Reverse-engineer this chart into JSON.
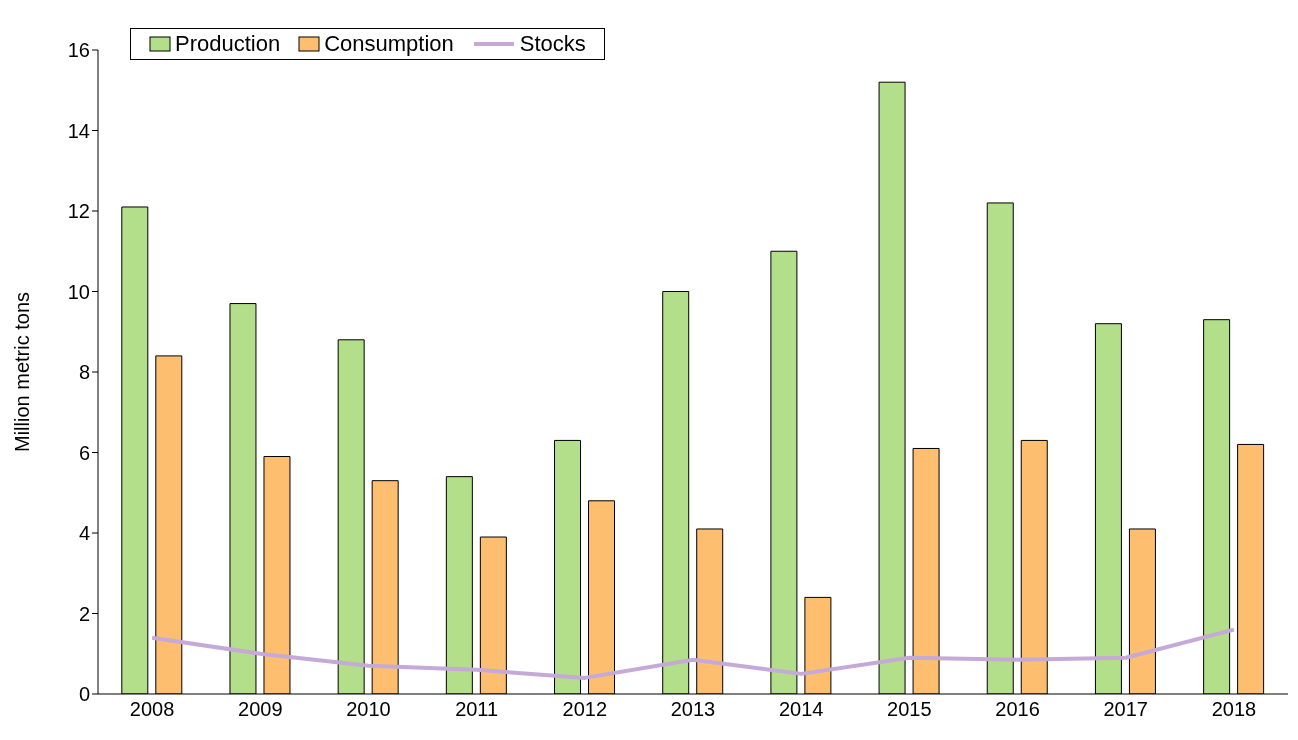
{
  "chart_data": {
    "type": "bar",
    "ylabel": "Million metric tons",
    "categories": [
      "2008",
      "2009",
      "2010",
      "2011",
      "2012",
      "2013",
      "2014",
      "2015",
      "2016",
      "2017",
      "2018"
    ],
    "series": [
      {
        "name": "Production",
        "color": "#b3de8a",
        "values": [
          12.1,
          9.7,
          8.8,
          5.4,
          6.3,
          10.0,
          11.0,
          15.2,
          12.2,
          9.2,
          9.3
        ]
      },
      {
        "name": "Consumption",
        "color": "#fdbf6f",
        "values": [
          8.4,
          5.9,
          5.3,
          3.9,
          4.8,
          4.1,
          2.4,
          6.1,
          6.3,
          4.1,
          6.2
        ]
      },
      {
        "name": "Stocks",
        "type": "line",
        "color": "#c5a9d6",
        "values": [
          1.4,
          1.0,
          0.7,
          0.6,
          0.4,
          0.85,
          0.5,
          0.9,
          0.85,
          0.9,
          1.6
        ]
      }
    ],
    "ylim": [
      0,
      16
    ],
    "yticks": [
      0,
      2,
      4,
      6,
      8,
      10,
      12,
      14,
      16
    ],
    "grid": false,
    "legend": "top left",
    "marker": "none",
    "line_style": "solid"
  }
}
